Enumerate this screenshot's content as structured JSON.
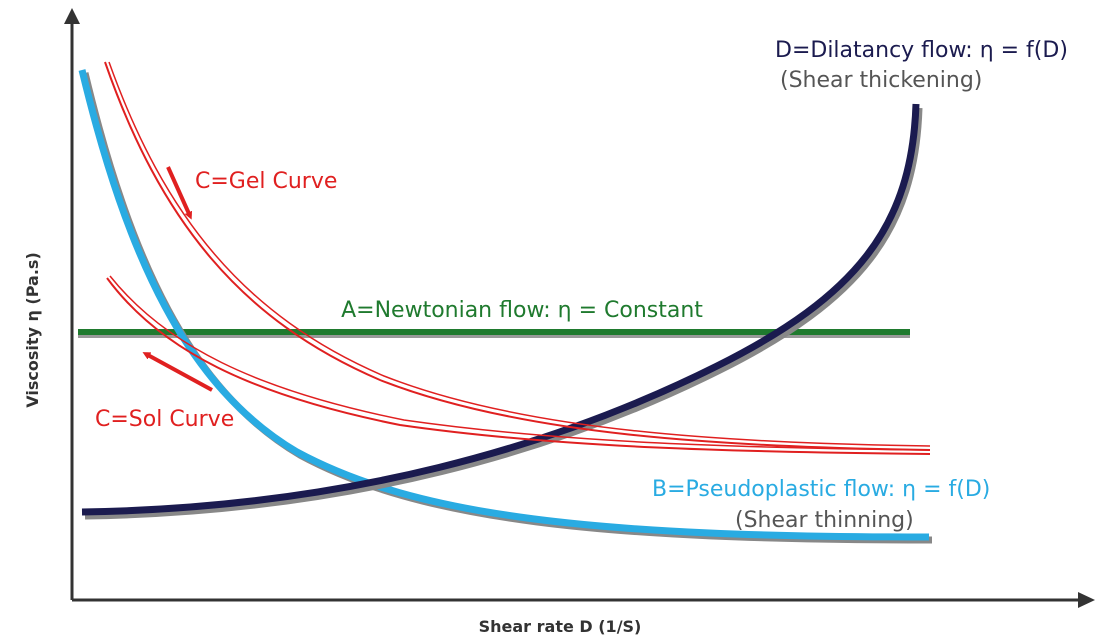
{
  "axes": {
    "y_label": "Viscosity η (Pa.s)",
    "x_label": "Shear rate D (1/S)"
  },
  "curves": {
    "dilatancy": {
      "label": "D=Dilatancy flow: η = f(D)",
      "note": "(Shear thickening)"
    },
    "gel": {
      "label": "C=Gel Curve"
    },
    "newtonian": {
      "label": "A=Newtonian flow: η = Constant"
    },
    "sol": {
      "label": "C=Sol Curve"
    },
    "pseudoplastic": {
      "label": "B=Pseudoplastic flow: η = f(D)",
      "note": "(Shear thinning)"
    }
  }
}
